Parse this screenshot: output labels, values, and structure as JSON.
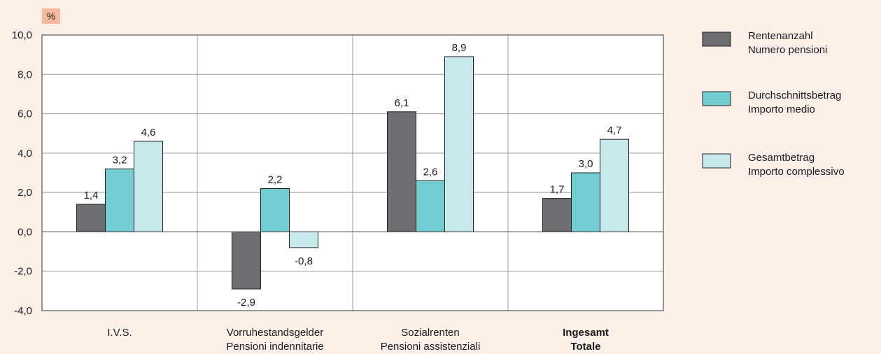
{
  "chart_data": {
    "type": "bar",
    "unit_label": "%",
    "categories": [
      {
        "line1": "I.V.S.",
        "line2": "",
        "bold": false
      },
      {
        "line1": "Vorruhestandsgelder",
        "line2": "Pensioni indennitarie",
        "bold": false
      },
      {
        "line1": "Sozialrenten",
        "line2": "Pensioni assistenziali",
        "bold": false
      },
      {
        "line1": "Ingesamt",
        "line2": "Totale",
        "bold": true
      }
    ],
    "series": [
      {
        "name": "Rentenanzahl Numero pensioni",
        "legend_line1": "Rentenanzahl",
        "legend_line2": "Numero pensioni",
        "color": "#6d6e71",
        "values": [
          1.4,
          -2.9,
          6.1,
          1.7
        ],
        "labels": [
          "1,4",
          "-2,9",
          "6,1",
          "1,7"
        ]
      },
      {
        "name": "Durchschnittsbetrag Importo medio",
        "legend_line1": "Durchschnittsbetrag",
        "legend_line2": "Importo medio",
        "color": "#72cdd3",
        "values": [
          3.2,
          2.2,
          2.6,
          3.0
        ],
        "labels": [
          "3,2",
          "2,2",
          "2,6",
          "3,0"
        ]
      },
      {
        "name": "Gesamtbetrag Importo complessivo",
        "legend_line1": "Gesamtbetrag",
        "legend_line2": "Importo complessivo",
        "color": "#c8e9ec",
        "values": [
          4.6,
          -0.8,
          8.9,
          4.7
        ],
        "labels": [
          "4,6",
          "-0,8",
          "8,9",
          "4,7"
        ]
      }
    ],
    "ylim": [
      -4,
      10
    ],
    "yticks": [
      -4,
      -2,
      0,
      2,
      4,
      6,
      8,
      10
    ],
    "ytick_labels": [
      "-4,0",
      "-2,0",
      "0,0",
      "2,0",
      "4,0",
      "6,0",
      "8,0",
      "10,0"
    ],
    "grid": true,
    "legend_position": "right",
    "colors": {
      "background": "#fdf0e8",
      "plot_background": "#ffffff",
      "unit_badge": "#f6b9a0",
      "grid": "#9a9a9a"
    }
  }
}
